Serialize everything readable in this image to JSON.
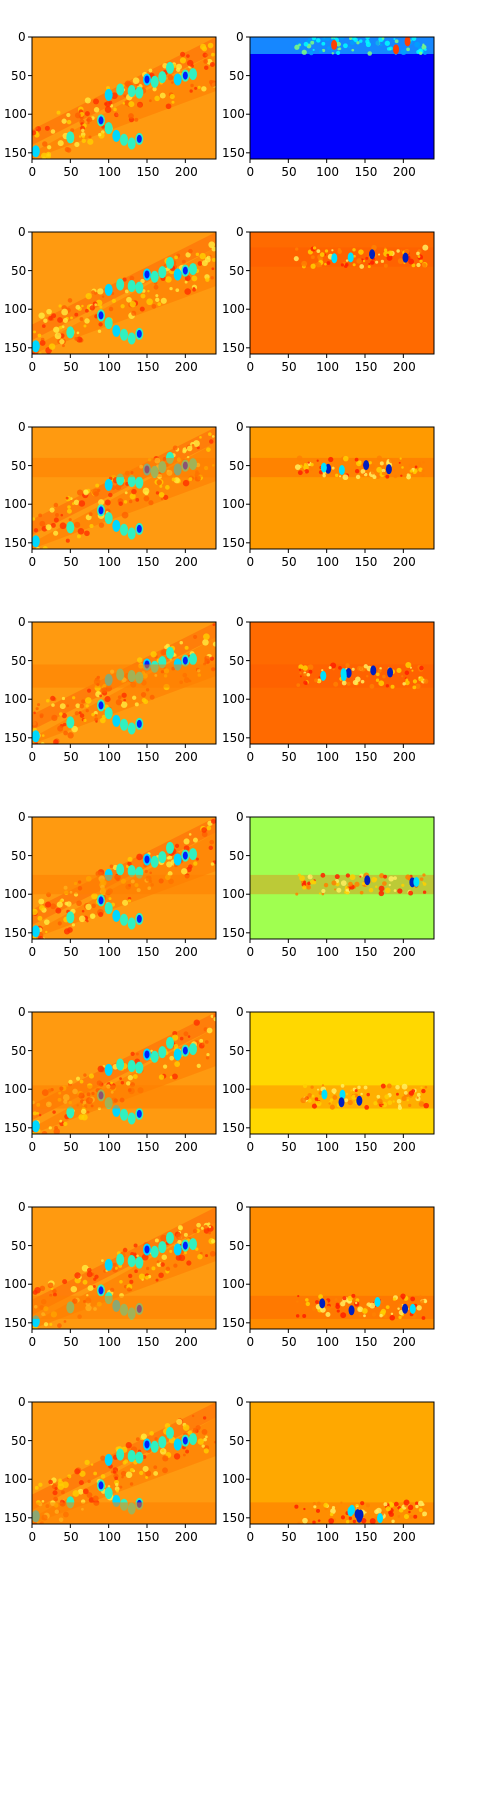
{
  "figure": {
    "rows": 8,
    "cols": 2,
    "x_ticks": [
      "0",
      "50",
      "100",
      "150",
      "200"
    ],
    "y_ticks": [
      "0",
      "50",
      "100",
      "150"
    ],
    "x_tick_values": [
      0,
      50,
      100,
      150,
      200
    ],
    "y_tick_values": [
      0,
      50,
      100,
      150
    ],
    "xlim": [
      0,
      240
    ],
    "ylim": [
      0,
      158
    ],
    "colormap": "jet",
    "left_column": {
      "description_key": "original-heatmap",
      "base_color": "#ff9a10",
      "pattern": "stripes-left"
    },
    "right_column": [
      {
        "row": 0,
        "base_color": "#0000ff",
        "highlight_band_y": [
          0,
          22
        ]
      },
      {
        "row": 1,
        "base_color": "#ff6a00",
        "highlight_band_y": [
          20,
          45
        ]
      },
      {
        "row": 2,
        "base_color": "#ff9a00",
        "highlight_band_y": [
          40,
          65
        ]
      },
      {
        "row": 3,
        "base_color": "#ff6a00",
        "highlight_band_y": [
          55,
          85
        ]
      },
      {
        "row": 4,
        "base_color": "#a0ff50",
        "highlight_band_y": [
          75,
          100
        ]
      },
      {
        "row": 5,
        "base_color": "#ffd800",
        "highlight_band_y": [
          95,
          125
        ]
      },
      {
        "row": 6,
        "base_color": "#ff8c00",
        "highlight_band_y": [
          115,
          145
        ]
      },
      {
        "row": 7,
        "base_color": "#ffa800",
        "highlight_band_y": [
          130,
          158
        ]
      }
    ]
  }
}
